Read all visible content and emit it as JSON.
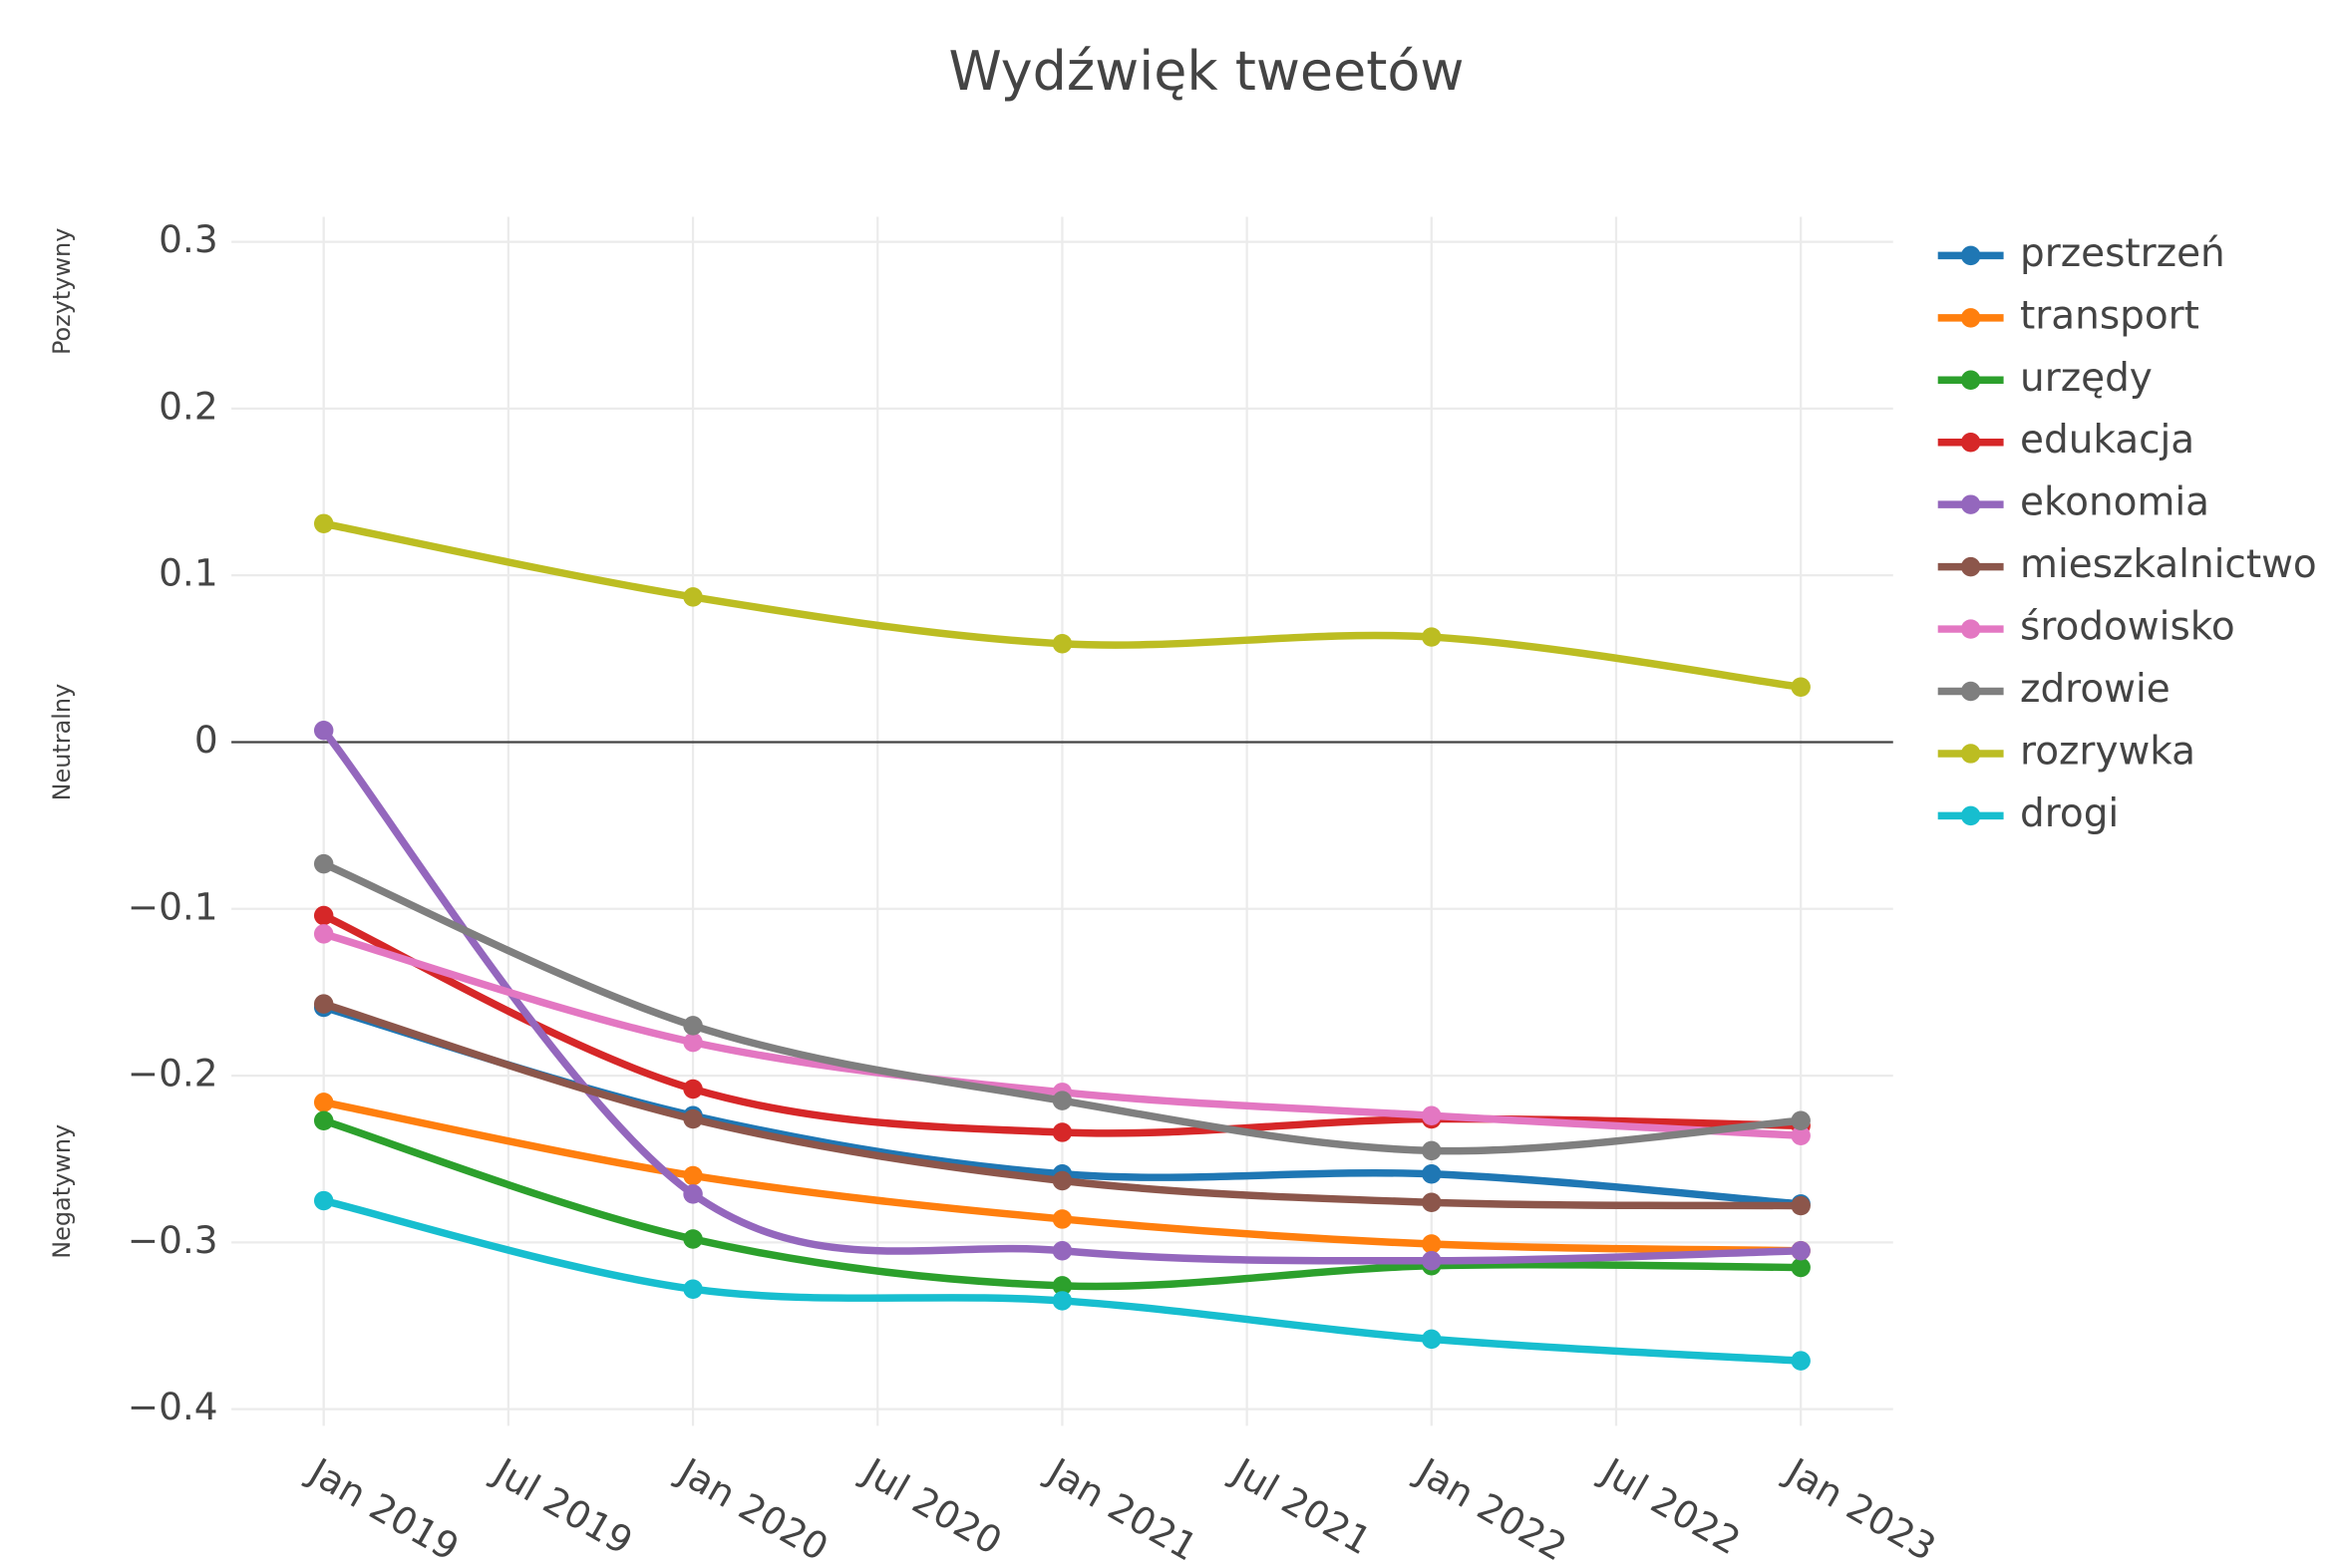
{
  "chart_data": {
    "type": "line",
    "title": "Wydźwięk tweetów",
    "annotations": [
      "Pozytywny",
      "Neutralny",
      "Negatywny"
    ],
    "x": [
      "2019-01",
      "2020-01",
      "2021-01",
      "2022-01",
      "2023-01"
    ],
    "xlim": [
      "2018-10",
      "2023-04"
    ],
    "xticks": [
      {
        "value": "2019-01",
        "label": "Jan 2019"
      },
      {
        "value": "2019-07",
        "label": "Jul 2019"
      },
      {
        "value": "2020-01",
        "label": "Jan 2020"
      },
      {
        "value": "2020-07",
        "label": "Jul 2020"
      },
      {
        "value": "2021-01",
        "label": "Jan 2021"
      },
      {
        "value": "2021-07",
        "label": "Jul 2021"
      },
      {
        "value": "2022-01",
        "label": "Jan 2022"
      },
      {
        "value": "2022-07",
        "label": "Jul 2022"
      },
      {
        "value": "2023-01",
        "label": "Jan 2023"
      }
    ],
    "ylim": [
      -0.41,
      0.315
    ],
    "yticks": [
      {
        "value": -0.4,
        "label": "−0.4"
      },
      {
        "value": -0.3,
        "label": "−0.3"
      },
      {
        "value": -0.2,
        "label": "−0.2"
      },
      {
        "value": -0.1,
        "label": "−0.1"
      },
      0,
      0.1,
      0.2,
      0.3
    ],
    "grid": true,
    "legend": "right",
    "series": [
      {
        "name": "przestrzeń",
        "color": "#1f77b4",
        "values": [
          -0.159,
          -0.224,
          -0.259,
          -0.259,
          -0.277
        ]
      },
      {
        "name": "transport",
        "color": "#ff7f0e",
        "values": [
          -0.216,
          -0.26,
          -0.286,
          -0.301,
          -0.305
        ]
      },
      {
        "name": "urzędy",
        "color": "#2ca02c",
        "values": [
          -0.227,
          -0.298,
          -0.326,
          -0.314,
          -0.315
        ]
      },
      {
        "name": "edukacja",
        "color": "#d62728",
        "values": [
          -0.104,
          -0.208,
          -0.234,
          -0.226,
          -0.23
        ]
      },
      {
        "name": "ekonomia",
        "color": "#9467bd",
        "values": [
          0.007,
          -0.271,
          -0.305,
          -0.311,
          -0.305
        ]
      },
      {
        "name": "mieszkalnictwo",
        "color": "#8c564b",
        "values": [
          -0.157,
          -0.226,
          -0.263,
          -0.276,
          -0.278
        ]
      },
      {
        "name": "środowisko",
        "color": "#e377c2",
        "values": [
          -0.115,
          -0.18,
          -0.21,
          -0.224,
          -0.236
        ]
      },
      {
        "name": "zdrowie",
        "color": "#7f7f7f",
        "values": [
          -0.073,
          -0.17,
          -0.215,
          -0.245,
          -0.227
        ]
      },
      {
        "name": "rozrywka",
        "color": "#bcbd22",
        "values": [
          0.131,
          0.087,
          0.059,
          0.063,
          0.033
        ]
      },
      {
        "name": "drogi",
        "color": "#17becf",
        "values": [
          -0.275,
          -0.328,
          -0.335,
          -0.358,
          -0.371
        ]
      }
    ]
  }
}
